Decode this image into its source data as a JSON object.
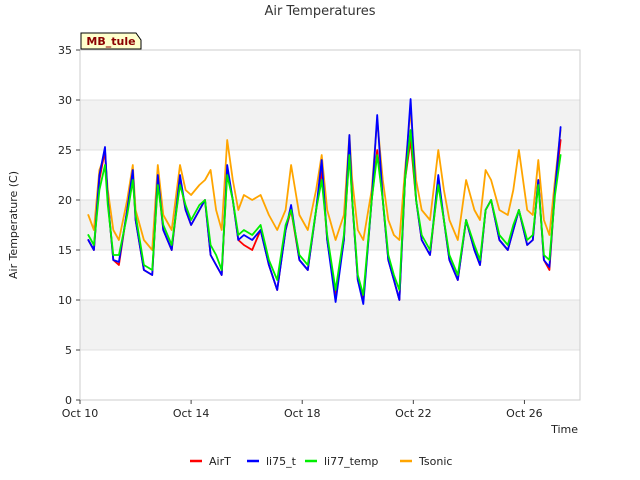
{
  "chart_data": {
    "type": "line",
    "title": "Air Temperatures",
    "xlabel": "Time",
    "ylabel": "Air Temperature (C)",
    "station_label": "MB_tule",
    "xlim": [
      10.0,
      28.0
    ],
    "ylim": [
      0,
      35
    ],
    "grid": true,
    "legend_position": "bottom",
    "x_ticks": [
      {
        "value": 10,
        "label": "Oct 10"
      },
      {
        "value": 14,
        "label": "Oct 14"
      },
      {
        "value": 18,
        "label": "Oct 18"
      },
      {
        "value": 22,
        "label": "Oct 22"
      },
      {
        "value": 26,
        "label": "Oct 26"
      }
    ],
    "y_ticks": [
      0,
      5,
      10,
      15,
      20,
      25,
      30,
      35
    ],
    "x_unit": "day of October",
    "series": [
      {
        "name": "AirT",
        "color": "#ff0000",
        "x": [
          10.3,
          10.5,
          10.7,
          10.9,
          11.0,
          11.2,
          11.4,
          11.7,
          11.9,
          12.0,
          12.3,
          12.6,
          12.8,
          13.0,
          13.3,
          13.6,
          13.8,
          14.0,
          14.3,
          14.5,
          14.7,
          14.9,
          15.1,
          15.3,
          15.5,
          15.7,
          15.9,
          16.2,
          16.5,
          16.8,
          17.1,
          17.4,
          17.6,
          17.9,
          18.2,
          18.5,
          18.7,
          18.9,
          19.2,
          19.5,
          19.7,
          19.8,
          20.0,
          20.2,
          20.5,
          20.7,
          20.9,
          21.1,
          21.3,
          21.5,
          21.7,
          21.9,
          22.1,
          22.3,
          22.6,
          22.9,
          23.1,
          23.3,
          23.6,
          23.9,
          24.2,
          24.4,
          24.6,
          24.8,
          25.1,
          25.4,
          25.6,
          25.8,
          26.1,
          26.3,
          26.5,
          26.7,
          26.9,
          27.1,
          27.3
        ],
        "y": [
          16.0,
          15.0,
          22.0,
          25.0,
          20.0,
          14.0,
          13.5,
          19.0,
          22.5,
          18.0,
          13.0,
          12.5,
          22.0,
          17.0,
          15.0,
          22.0,
          19.0,
          17.5,
          19.0,
          20.0,
          14.5,
          13.5,
          12.5,
          23.0,
          20.0,
          16.0,
          15.5,
          15.0,
          17.0,
          13.5,
          11.0,
          17.0,
          19.0,
          14.0,
          13.0,
          19.0,
          23.0,
          16.0,
          10.5,
          16.0,
          25.0,
          20.0,
          12.0,
          10.0,
          20.0,
          25.0,
          20.0,
          14.0,
          12.0,
          10.0,
          22.0,
          26.0,
          20.0,
          16.0,
          14.5,
          22.0,
          18.0,
          14.0,
          12.0,
          18.0,
          15.0,
          13.5,
          19.0,
          20.0,
          16.0,
          15.0,
          17.0,
          19.0,
          15.5,
          16.0,
          22.0,
          14.0,
          13.0,
          21.0,
          26.0
        ]
      },
      {
        "name": "li75_t",
        "color": "#0000ff",
        "x": [
          10.3,
          10.5,
          10.7,
          10.9,
          11.0,
          11.2,
          11.4,
          11.7,
          11.9,
          12.0,
          12.3,
          12.6,
          12.8,
          13.0,
          13.3,
          13.6,
          13.8,
          14.0,
          14.3,
          14.5,
          14.7,
          14.9,
          15.1,
          15.3,
          15.5,
          15.7,
          15.9,
          16.2,
          16.5,
          16.8,
          17.1,
          17.4,
          17.6,
          17.9,
          18.2,
          18.5,
          18.7,
          18.9,
          19.2,
          19.5,
          19.7,
          19.8,
          20.0,
          20.2,
          20.5,
          20.7,
          20.9,
          21.1,
          21.3,
          21.5,
          21.7,
          21.9,
          22.1,
          22.3,
          22.6,
          22.9,
          23.1,
          23.3,
          23.6,
          23.9,
          24.2,
          24.4,
          24.6,
          24.8,
          25.1,
          25.4,
          25.6,
          25.8,
          26.1,
          26.3,
          26.5,
          26.7,
          26.9,
          27.1,
          27.3
        ],
        "y": [
          16.0,
          15.0,
          22.5,
          25.3,
          20.0,
          14.0,
          13.8,
          19.0,
          23.0,
          18.0,
          13.0,
          12.5,
          22.5,
          17.0,
          15.0,
          22.5,
          19.0,
          17.5,
          19.0,
          20.0,
          14.5,
          13.5,
          12.5,
          23.5,
          20.0,
          16.0,
          16.5,
          16.0,
          17.0,
          13.5,
          11.0,
          17.0,
          19.5,
          14.0,
          13.0,
          19.0,
          24.0,
          16.0,
          9.8,
          16.0,
          26.5,
          20.0,
          12.0,
          9.6,
          20.0,
          28.5,
          20.0,
          14.0,
          12.0,
          10.0,
          22.0,
          30.1,
          20.0,
          16.0,
          14.5,
          22.5,
          18.0,
          14.0,
          12.0,
          18.0,
          15.0,
          13.5,
          19.0,
          20.0,
          16.0,
          15.0,
          17.0,
          19.0,
          15.5,
          16.0,
          22.0,
          14.0,
          13.3,
          21.0,
          27.3
        ]
      },
      {
        "name": "li77_temp",
        "color": "#00ee00",
        "x": [
          10.3,
          10.5,
          10.7,
          10.9,
          11.0,
          11.2,
          11.4,
          11.7,
          11.9,
          12.0,
          12.3,
          12.6,
          12.8,
          13.0,
          13.3,
          13.6,
          13.8,
          14.0,
          14.3,
          14.5,
          14.7,
          14.9,
          15.1,
          15.3,
          15.5,
          15.7,
          15.9,
          16.2,
          16.5,
          16.8,
          17.1,
          17.4,
          17.6,
          17.9,
          18.2,
          18.5,
          18.7,
          18.9,
          19.2,
          19.5,
          19.7,
          19.8,
          20.0,
          20.2,
          20.5,
          20.7,
          20.9,
          21.1,
          21.3,
          21.5,
          21.7,
          21.9,
          22.1,
          22.3,
          22.6,
          22.9,
          23.1,
          23.3,
          23.6,
          23.9,
          24.2,
          24.4,
          24.6,
          24.8,
          25.1,
          25.4,
          25.6,
          25.8,
          26.1,
          26.3,
          26.5,
          26.7,
          26.9,
          27.1,
          27.3
        ],
        "y": [
          16.5,
          15.5,
          21.0,
          23.5,
          19.5,
          14.5,
          14.5,
          18.5,
          22.0,
          18.5,
          13.5,
          13.0,
          21.5,
          17.5,
          15.5,
          21.5,
          19.5,
          18.0,
          19.5,
          20.0,
          15.5,
          14.5,
          13.0,
          22.5,
          20.0,
          16.5,
          17.0,
          16.5,
          17.5,
          14.0,
          12.0,
          17.5,
          19.0,
          14.5,
          13.5,
          19.0,
          22.0,
          16.5,
          11.0,
          16.5,
          24.5,
          20.0,
          12.5,
          10.5,
          20.0,
          24.5,
          20.0,
          14.5,
          12.5,
          11.0,
          22.0,
          27.0,
          20.0,
          16.5,
          15.0,
          21.5,
          18.0,
          14.5,
          12.5,
          18.0,
          15.5,
          14.0,
          19.0,
          20.0,
          16.5,
          15.5,
          17.5,
          19.0,
          16.0,
          16.5,
          21.5,
          14.5,
          14.0,
          20.5,
          24.5
        ]
      },
      {
        "name": "Tsonic",
        "color": "#ffa500",
        "x": [
          10.3,
          10.5,
          10.7,
          10.9,
          11.0,
          11.2,
          11.4,
          11.7,
          11.9,
          12.0,
          12.3,
          12.6,
          12.8,
          13.0,
          13.3,
          13.6,
          13.8,
          14.0,
          14.3,
          14.5,
          14.7,
          14.9,
          15.1,
          15.3,
          15.5,
          15.7,
          15.9,
          16.2,
          16.5,
          16.8,
          17.1,
          17.4,
          17.6,
          17.9,
          18.2,
          18.5,
          18.7,
          18.9,
          19.2,
          19.5,
          19.7,
          19.8,
          20.0,
          20.2,
          20.5,
          20.7,
          20.9,
          21.1,
          21.3,
          21.5,
          21.7,
          21.9,
          22.1,
          22.3,
          22.6,
          22.9,
          23.1,
          23.3,
          23.6,
          23.9,
          24.2,
          24.4,
          24.6,
          24.8,
          25.1,
          25.4,
          25.6,
          25.8,
          26.1,
          26.3,
          26.5,
          26.7,
          26.9,
          27.1,
          27.3
        ],
        "y": [
          18.5,
          17.0,
          23.0,
          24.5,
          21.0,
          17.0,
          16.0,
          20.0,
          23.5,
          19.0,
          16.0,
          15.0,
          23.5,
          18.5,
          17.0,
          23.5,
          21.0,
          20.5,
          21.5,
          22.0,
          23.0,
          19.0,
          17.0,
          26.0,
          22.0,
          19.0,
          20.5,
          20.0,
          20.5,
          18.5,
          17.0,
          19.0,
          23.5,
          18.5,
          17.0,
          21.0,
          24.5,
          19.0,
          16.0,
          18.5,
          26.5,
          22.0,
          17.0,
          16.0,
          21.0,
          28.0,
          22.0,
          18.0,
          16.5,
          16.0,
          23.0,
          29.0,
          22.0,
          19.0,
          18.0,
          25.0,
          21.0,
          18.0,
          16.0,
          22.0,
          19.0,
          18.0,
          23.0,
          22.0,
          19.0,
          18.5,
          21.0,
          25.0,
          19.0,
          18.5,
          24.0,
          18.0,
          16.5,
          22.0,
          27.0
        ]
      }
    ]
  }
}
